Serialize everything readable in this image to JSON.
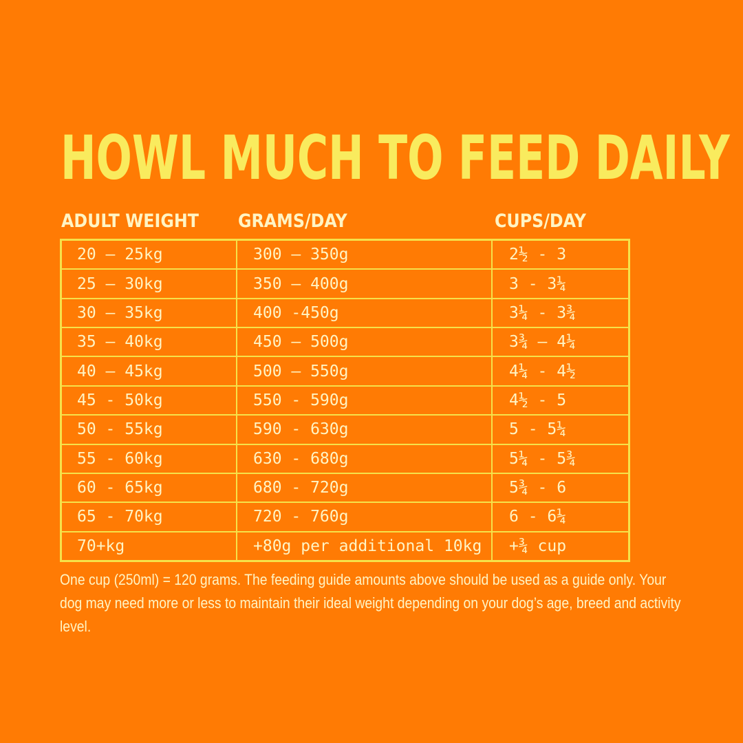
{
  "title": "HOWL MUCH TO FEED DAILY",
  "headers": {
    "weight": "ADULT WEIGHT",
    "grams": "GRAMS/DAY",
    "cups": "CUPS/DAY"
  },
  "rows": [
    {
      "weight": "20 – 25kg",
      "grams": "300 – 350g",
      "cups": "2½ - 3"
    },
    {
      "weight": "25 – 30kg",
      "grams": "350 – 400g",
      "cups": "3 - 3¼"
    },
    {
      "weight": "30 – 35kg",
      "grams": "400 -450g",
      "cups": "3¼ - 3¾"
    },
    {
      "weight": "35 – 40kg",
      "grams": "450 – 500g",
      "cups": "3¾ – 4¼"
    },
    {
      "weight": "40 – 45kg",
      "grams": "500 – 550g",
      "cups": "4¼ - 4½"
    },
    {
      "weight": "45 - 50kg",
      "grams": "550 - 590g",
      "cups": "4½ - 5"
    },
    {
      "weight": "50 - 55kg",
      "grams": "590 - 630g",
      "cups": "5 - 5¼"
    },
    {
      "weight": "55 - 60kg",
      "grams": "630 - 680g",
      "cups": "5¼ - 5¾"
    },
    {
      "weight": "60 - 65kg",
      "grams": "680 - 720g",
      "cups": "5¾ - 6"
    },
    {
      "weight": "65 - 70kg",
      "grams": "720 - 760g",
      "cups": "6 - 6¼"
    },
    {
      "weight": "70+kg",
      "grams": "+80g per additional 10kg",
      "cups": "+¾ cup"
    }
  ],
  "note": "One cup (250ml) = 120 grams. The feeding guide amounts above should be used as a guide only. Your dog may need more or less to maintain their ideal weight depending on your dog’s age, breed and activity level.",
  "colors": {
    "background": "#FF7B04",
    "title": "#F9EB5E",
    "border": "#F5E24A",
    "text": "#FFF4C4"
  }
}
